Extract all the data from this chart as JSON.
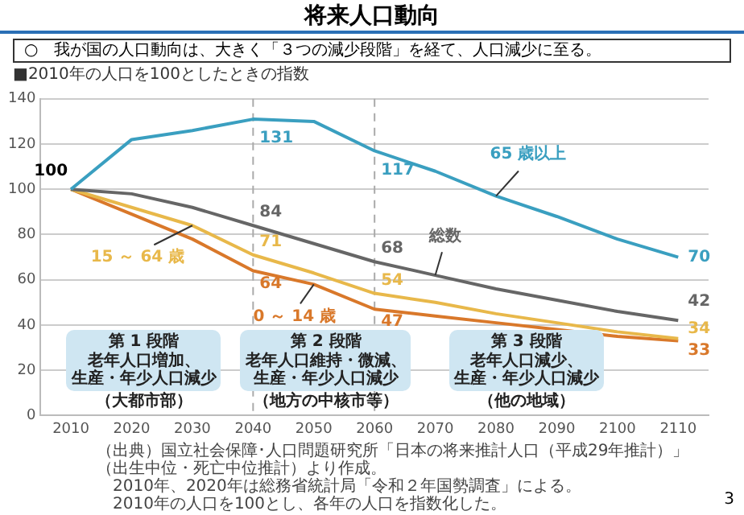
{
  "chart_data": {
    "type": "line",
    "title": "将来人口動向",
    "subtitle": "○　我が国の人口動向は、大きく「３つの減少段階」を経て、人口減少に至る。",
    "ylabel": "■2010年の人口を100としたときの指数",
    "x": [
      2010,
      2020,
      2030,
      2040,
      2050,
      2060,
      2070,
      2080,
      2090,
      2100,
      2110
    ],
    "series": [
      {
        "name": "65 歳以上",
        "color": "#3a9fc0",
        "values": [
          100,
          122,
          126,
          131,
          130,
          117,
          108,
          97,
          88,
          78,
          70
        ],
        "value_labels": [
          null,
          null,
          null,
          "131",
          null,
          "117",
          null,
          null,
          null,
          null,
          "70"
        ]
      },
      {
        "name": "総数",
        "color": "#666666",
        "values": [
          100,
          98,
          92,
          84,
          76,
          68,
          62,
          56,
          51,
          46,
          42
        ],
        "value_labels": [
          "100",
          null,
          null,
          "84",
          null,
          "68",
          null,
          null,
          null,
          null,
          "42"
        ]
      },
      {
        "name": "15 ～ 64 歳",
        "color": "#e8b84a",
        "values": [
          100,
          92,
          84,
          71,
          63,
          54,
          50,
          45,
          41,
          37,
          34
        ],
        "value_labels": [
          null,
          null,
          null,
          "71",
          null,
          "54",
          null,
          null,
          null,
          null,
          "34"
        ]
      },
      {
        "name": "0 ～ 14 歳",
        "color": "#d9782a",
        "values": [
          100,
          89,
          78,
          64,
          58,
          47,
          44,
          41,
          38,
          35,
          33
        ],
        "value_labels": [
          null,
          null,
          null,
          "64",
          null,
          "47",
          null,
          null,
          null,
          null,
          "33"
        ]
      }
    ],
    "xlim": [
      2005,
      2115
    ],
    "xticks": [
      2010,
      2020,
      2030,
      2040,
      2050,
      2060,
      2070,
      2080,
      2090,
      2100,
      2110
    ],
    "ylim": [
      0,
      140
    ],
    "yticks": [
      0,
      20,
      40,
      60,
      80,
      100,
      120,
      140
    ],
    "grid": "y",
    "legend": false,
    "marker": "none",
    "line_style": "solid",
    "ref_lines": [
      {
        "axis": "x",
        "value": 2040,
        "color": "#aaaaaa",
        "line_style": "dashed"
      },
      {
        "axis": "x",
        "value": 2060,
        "color": "#aaaaaa",
        "line_style": "dashed"
      }
    ],
    "annotations": [
      "第 1 段階",
      "老年人口増加、生産・年少人口減少",
      "（大都市部）",
      "第 2 段階",
      "老年人口維持・微減、生産・年少人口減少",
      "（地方の中核市等）",
      "第 3 段階",
      "老年人口減少、生産・年少人口減少",
      "（他の地域）",
      "（出典）国立社会保障･人口問題研究所「日本の将来推計人口（平成29年推計）」（出生中位・死亡中位推計）より作成。",
      "2010年、2020年は総務省統計局「令和２年国勢調査」による。",
      "2010年の人口を100とし、各年の人口を指数化した。",
      "3"
    ]
  }
}
